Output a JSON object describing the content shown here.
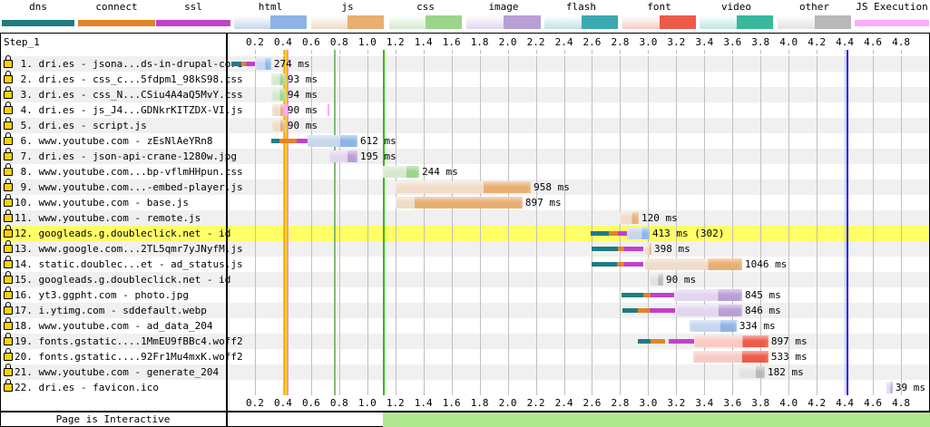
{
  "legend": [
    {
      "label": "dns",
      "type": "thin",
      "color": "#1f7c83"
    },
    {
      "label": "connect",
      "type": "thin",
      "color": "#e58226"
    },
    {
      "label": "ssl",
      "type": "thin",
      "color": "#c141cd"
    },
    {
      "label": "html",
      "type": "thick",
      "light": "#c6d6ec",
      "dark": "#8fb3e6"
    },
    {
      "label": "js",
      "type": "thick",
      "light": "#efdcc8",
      "dark": "#e8ae72"
    },
    {
      "label": "css",
      "type": "thick",
      "light": "#d6e9cd",
      "dark": "#9cd58a"
    },
    {
      "label": "image",
      "type": "thick",
      "light": "#e2d5ef",
      "dark": "#b99fd6"
    },
    {
      "label": "flash",
      "type": "thick",
      "light": "#bfe3e5",
      "dark": "#39aab2"
    },
    {
      "label": "font",
      "type": "thick",
      "light": "#f7cbc4",
      "dark": "#ee5a48"
    },
    {
      "label": "video",
      "type": "thick",
      "light": "#bde7dd",
      "dark": "#3ab89d"
    },
    {
      "label": "other",
      "type": "thick",
      "light": "#e2e2e2",
      "dark": "#b8b8b8"
    },
    {
      "label": "JS Execution",
      "type": "thin",
      "color": "#ffaaff"
    }
  ],
  "step_label": "Step_1",
  "axis": {
    "unit": "s",
    "ticks": [
      "0.2",
      "0.4",
      "0.6",
      "0.8",
      "1.0",
      "1.2",
      "1.4",
      "1.6",
      "1.8",
      "2.0",
      "2.2",
      "2.4",
      "2.6",
      "2.8",
      "3.0",
      "3.2",
      "3.4",
      "3.6",
      "3.8",
      "4.0",
      "4.2",
      "4.4",
      "4.6",
      "4.8"
    ]
  },
  "markers": [
    {
      "time": 0.41,
      "color": "#ffa500"
    },
    {
      "time": 0.415,
      "color": "#ffd700"
    },
    {
      "time": 0.425,
      "color": "#d59ae8"
    },
    {
      "time": 0.76,
      "color": "#86b97a"
    },
    {
      "time": 1.11,
      "color": "#28c000"
    },
    {
      "time": 4.41,
      "color": "#0000ff"
    }
  ],
  "requests": [
    {
      "label": " 1. dri.es - jsona...ds-in-drupal-core",
      "type": "html",
      "dns": [
        0.032,
        0.103
      ],
      "connect": [
        0.103,
        0.135
      ],
      "ssl": [
        0.135,
        0.2
      ],
      "req": [
        0.2,
        0.316
      ],
      "ms": "274 ms"
    },
    {
      "label": " 2. dri.es - css_c...5fdpm1_98kS98.css",
      "type": "css",
      "req": [
        0.316,
        0.413
      ],
      "ms": "93 ms"
    },
    {
      "label": " 3. dri.es - css_N...CSiu4A4aQ5MvY.css",
      "type": "css",
      "req": [
        0.316,
        0.413
      ],
      "ms": "94 ms"
    },
    {
      "label": " 4. dri.es - js_J4...GDNkrKITZDX-VI.js",
      "type": "js",
      "req": [
        0.32,
        0.413
      ],
      "js_exec": [
        [
          0.41,
          0.43
        ],
        [
          0.72,
          0.725
        ]
      ],
      "ms": "90 ms"
    },
    {
      "label": " 5. dri.es - script.js",
      "type": "js",
      "req": [
        0.32,
        0.413
      ],
      "ms": "90 ms"
    },
    {
      "label": " 6. www.youtube.com - zEsNlAeYRn8",
      "type": "html",
      "dns": [
        0.316,
        0.374
      ],
      "connect": [
        0.374,
        0.497
      ],
      "ssl": [
        0.497,
        0.575
      ],
      "req": [
        0.575,
        0.93
      ],
      "ms": "612 ms"
    },
    {
      "label": " 7. dri.es - json-api-crane-1280w.jpg",
      "type": "image",
      "req": [
        0.73,
        0.93
      ],
      "ms": "195 ms"
    },
    {
      "label": " 8. www.youtube.com...bp-vflmHHpun.css",
      "type": "css",
      "req": [
        1.111,
        1.37
      ],
      "ms": "244 ms"
    },
    {
      "label": " 9. www.youtube.com...-embed-player.js",
      "type": "js",
      "req": [
        1.2,
        2.165
      ],
      "ms": "958 ms"
    },
    {
      "label": "10. www.youtube.com - base.js",
      "type": "js",
      "req": [
        1.2,
        2.105
      ],
      "dark_body": true,
      "ms": "897 ms"
    },
    {
      "label": "11. www.youtube.com - remote.js",
      "type": "js",
      "req": [
        2.797,
        2.933
      ],
      "ms": "120 ms"
    },
    {
      "label": "12. googleads.g.doubleclick.net - id",
      "type": "html",
      "highlight": true,
      "dns": [
        2.59,
        2.72
      ],
      "connect": [
        2.72,
        2.785
      ],
      "ssl": [
        2.785,
        2.85
      ],
      "req": [
        2.85,
        3.01
      ],
      "ms": "413 ms (302)"
    },
    {
      "label": "13. www.google.com...2TL5qmr7yJNyfM.js",
      "type": "js",
      "dns": [
        2.597,
        2.784
      ],
      "connect": [
        2.784,
        2.829
      ],
      "ssl": [
        2.829,
        2.965
      ],
      "req": [
        2.978,
        3.023
      ],
      "ms": "398 ms"
    },
    {
      "label": "14. static.doublec...et - ad_status.js",
      "type": "js",
      "dns": [
        2.597,
        2.778
      ],
      "connect": [
        2.778,
        2.829
      ],
      "ssl": [
        2.829,
        2.965
      ],
      "req": [
        2.978,
        3.669
      ],
      "ms": "1046 ms"
    },
    {
      "label": "15. googleads.g.doubleclick.net - id",
      "type": "other",
      "req": [
        3.01,
        3.107
      ],
      "ms": "90 ms"
    },
    {
      "label": "16. yt3.ggpht.com - photo.jpg",
      "type": "image",
      "dns": [
        2.81,
        2.965
      ],
      "connect": [
        2.965,
        3.017
      ],
      "ssl": [
        3.017,
        3.185
      ],
      "req": [
        3.185,
        3.669
      ],
      "ms": "845 ms"
    },
    {
      "label": "17. i.ytimg.com - sddefault.webp",
      "type": "image",
      "dns": [
        2.816,
        2.926
      ],
      "connect": [
        2.926,
        3.01
      ],
      "ssl": [
        3.01,
        3.191
      ],
      "req": [
        3.191,
        3.669
      ],
      "ms": "846 ms"
    },
    {
      "label": "18. www.youtube.com - ad_data_204",
      "type": "html",
      "req": [
        3.295,
        3.63
      ],
      "ms": "334 ms"
    },
    {
      "label": "19. fonts.gstatic....1MmEU9fBBc4.woff2",
      "type": "font",
      "dns": [
        2.926,
        3.017
      ],
      "connect": [
        3.017,
        3.119
      ],
      "ssl": [
        3.145,
        3.327
      ],
      "req": [
        3.327,
        3.856
      ],
      "ms": "897 ms"
    },
    {
      "label": "20. fonts.gstatic....92Fr1Mu4mxK.woff2",
      "type": "font",
      "req": [
        3.321,
        3.856
      ],
      "ms": "533 ms"
    },
    {
      "label": "21. www.youtube.com - generate_204",
      "type": "other",
      "req": [
        3.643,
        3.831
      ],
      "ms": "182 ms"
    },
    {
      "label": "22. dri.es - favicon.ico",
      "type": "image",
      "req": [
        4.696,
        4.741
      ],
      "ms": "39 ms"
    }
  ],
  "footer": {
    "label": "Page is Interactive",
    "interactive_from": 1.11
  }
}
